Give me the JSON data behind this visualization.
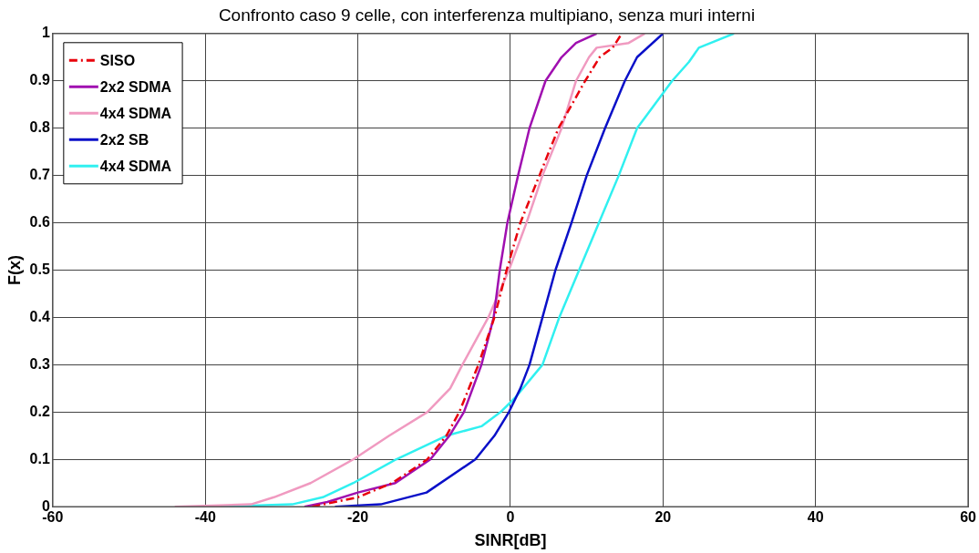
{
  "chart_data": {
    "type": "line",
    "title": "Confronto caso 9 celle, con interferenza multipiano, senza muri interni",
    "xlabel": "SINR[dB]",
    "ylabel": "F(x)",
    "xlim": [
      -60,
      60
    ],
    "xticks": [
      -60,
      -40,
      -20,
      0,
      20,
      40,
      60
    ],
    "ylim": [
      0,
      1
    ],
    "yticks": [
      0,
      0.1,
      0.2,
      0.3,
      0.4,
      0.5,
      0.6,
      0.7,
      0.8,
      0.9,
      1
    ],
    "grid": true,
    "legend": "top left",
    "marker": "none",
    "series": [
      {
        "name": "SISO",
        "color": "#e8000b",
        "line_style": "dashed",
        "x": [
          -26,
          -20,
          -15.5,
          -10.9,
          -8.4,
          -6.7,
          -4.2,
          -2.1,
          -0.5,
          1.3,
          3.8,
          6.3,
          9.8,
          11.7,
          13.4,
          14.6
        ],
        "values": [
          0,
          0.02,
          0.05,
          0.1,
          0.15,
          0.2,
          0.3,
          0.4,
          0.5,
          0.6,
          0.7,
          0.8,
          0.9,
          0.95,
          0.97,
          1
        ]
      },
      {
        "name": "2x2 SDMA",
        "color": "#a010b0",
        "line_style": "solid",
        "x": [
          -27,
          -24,
          -20,
          -15.1,
          -10.5,
          -8,
          -6.1,
          -3.8,
          -2.2,
          -1.4,
          -0.4,
          1,
          2.5,
          4.6,
          6.7,
          8.6,
          11.3
        ],
        "values": [
          0,
          0.01,
          0.03,
          0.05,
          0.1,
          0.15,
          0.2,
          0.3,
          0.4,
          0.5,
          0.6,
          0.7,
          0.8,
          0.9,
          0.95,
          0.98,
          1
        ]
      },
      {
        "name": "4x4 SDMA",
        "color": "#f09ac0",
        "line_style": "solid",
        "x": [
          -44,
          -34,
          -31,
          -26.2,
          -20.6,
          -15.9,
          -10.9,
          -7.9,
          -6.3,
          -4.6,
          -2.9,
          -0.2,
          2.1,
          4.2,
          6.7,
          8.6,
          10.3,
          11.3,
          15.5,
          17.6
        ],
        "values": [
          0,
          0.005,
          0.02,
          0.05,
          0.1,
          0.15,
          0.2,
          0.25,
          0.3,
          0.35,
          0.4,
          0.5,
          0.6,
          0.7,
          0.8,
          0.9,
          0.95,
          0.97,
          0.98,
          1
        ]
      },
      {
        "name": "2x2 SB",
        "color": "#0a10c8",
        "line_style": "solid",
        "x": [
          -23,
          -17,
          -11,
          -4.6,
          -2.1,
          -0.2,
          1.3,
          2.5,
          4.2,
          5.9,
          8,
          10,
          12.4,
          15,
          16.6,
          20
        ],
        "values": [
          0,
          0.005,
          0.03,
          0.1,
          0.15,
          0.2,
          0.25,
          0.3,
          0.4,
          0.5,
          0.6,
          0.7,
          0.8,
          0.9,
          0.95,
          1
        ]
      },
      {
        "name": "4x4 SDMA",
        "color": "#30f0f0",
        "line_style": "solid",
        "x": [
          -38,
          -28.6,
          -24.6,
          -20.6,
          -15,
          -8.4,
          -3.8,
          -1.3,
          0.6,
          4.2,
          6.4,
          9,
          11.6,
          14.2,
          16.6,
          21.2,
          23.4,
          24.7,
          29.3
        ],
        "values": [
          0,
          0.005,
          0.02,
          0.05,
          0.1,
          0.15,
          0.17,
          0.2,
          0.23,
          0.3,
          0.4,
          0.5,
          0.6,
          0.7,
          0.8,
          0.9,
          0.94,
          0.97,
          1
        ]
      }
    ]
  }
}
